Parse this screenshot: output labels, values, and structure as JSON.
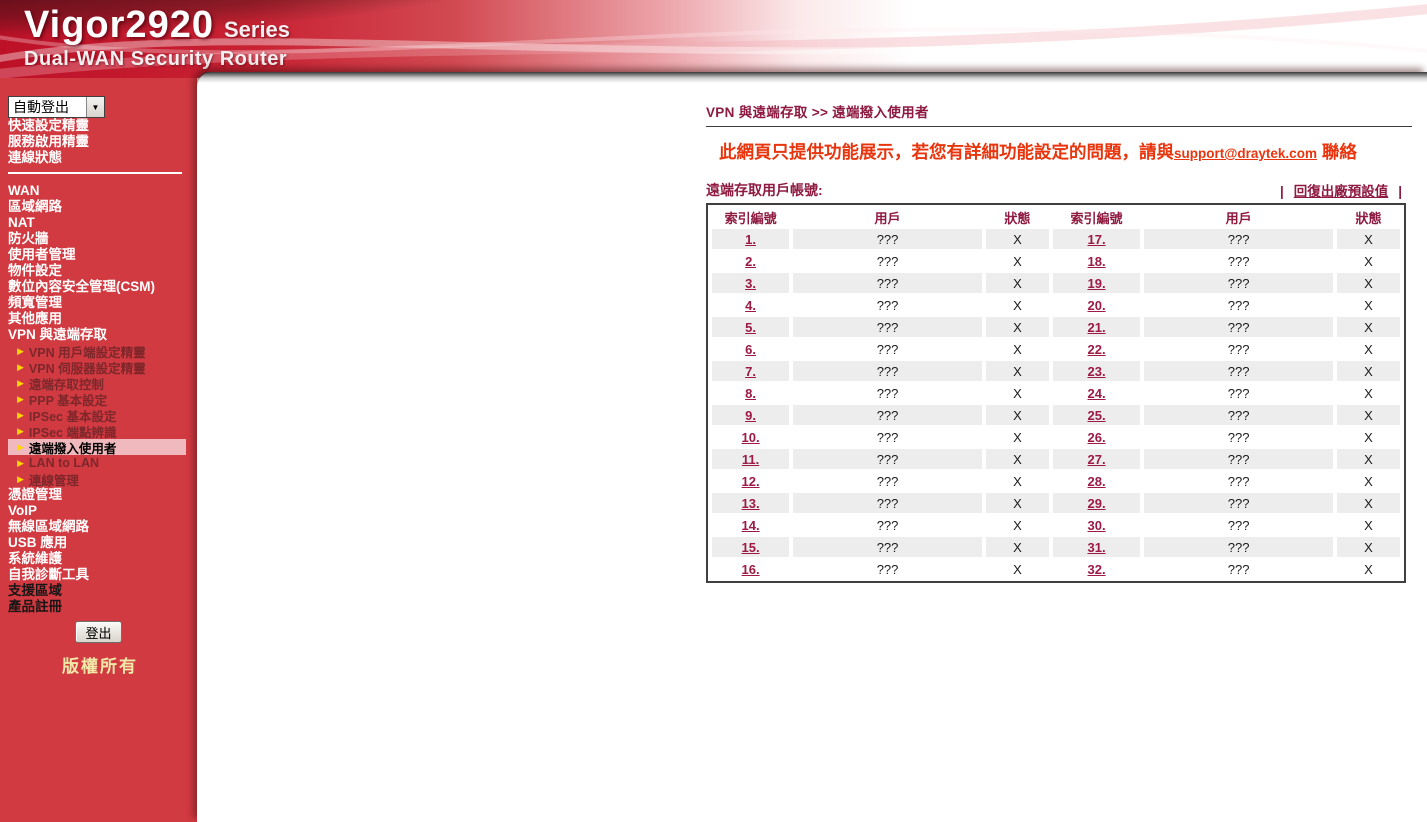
{
  "colors": {
    "sidebar_red": "#d23a41",
    "banner_red": "#c8152e",
    "accent_maroon": "#8e1a40",
    "notice_red": "#e8350e",
    "active_item_bg": "#f0b9bd",
    "active_item_text": "#000000",
    "submenu_text": "#7d272b",
    "triangle_yellow": "#ffd400",
    "copyright_yellow": "#f0e9a8",
    "row_alt_gray": "#ededed",
    "table_border": "#3f3f3f"
  },
  "banner": {
    "product": "Vigor2920",
    "series": "Series",
    "subtitle": "Dual-WAN Security Router"
  },
  "sidebar": {
    "logout_select_value": "自動登出",
    "select_arrow_icon": "▼",
    "top_items": [
      "快速設定精靈",
      "服務啟用精靈",
      "連線狀態"
    ],
    "menu": [
      {
        "label": "WAN"
      },
      {
        "label": "區域網路"
      },
      {
        "label": "NAT"
      },
      {
        "label": "防火牆"
      },
      {
        "label": "使用者管理"
      },
      {
        "label": "物件設定"
      },
      {
        "label": "數位內容安全管理(CSM)"
      },
      {
        "label": "頻寬管理"
      },
      {
        "label": "其他應用"
      },
      {
        "label": "VPN 與遠端存取",
        "children": [
          "VPN 用戶端設定精靈",
          "VPN 伺服器設定精靈",
          "遠端存取控制",
          "PPP 基本設定",
          "IPSec 基本設定",
          "IPSec 端點辨識",
          "遠端撥入使用者",
          "LAN to LAN",
          "連線管理"
        ],
        "active_child": "遠端撥入使用者"
      },
      {
        "label": "憑證管理"
      },
      {
        "label": "VoIP"
      },
      {
        "label": "無線區域網路"
      },
      {
        "label": "USB 應用"
      },
      {
        "label": "系統維護"
      },
      {
        "label": "自我診斷工具"
      }
    ],
    "bottom_items": [
      "支援區域",
      "產品註冊"
    ],
    "logout_button": "登出",
    "copyright": "版權所有",
    "triangle_icon": "▶"
  },
  "main": {
    "breadcrumb": "VPN 與遠端存取 >> 遠端撥入使用者",
    "notice_prefix": "此網頁只提供功能展示，若您有詳細功能設定的問題，請與",
    "notice_link": "support@draytek.com",
    "notice_suffix": " 聯絡",
    "caption": "遠端存取用戶帳號:",
    "pipe": "|",
    "restore_link": "回復出廠預設值",
    "table": {
      "headers": [
        "索引編號",
        "用戶",
        "狀態",
        "索引編號",
        "用戶",
        "狀態"
      ],
      "rows": [
        [
          "1.",
          "???",
          "X",
          "17.",
          "???",
          "X"
        ],
        [
          "2.",
          "???",
          "X",
          "18.",
          "???",
          "X"
        ],
        [
          "3.",
          "???",
          "X",
          "19.",
          "???",
          "X"
        ],
        [
          "4.",
          "???",
          "X",
          "20.",
          "???",
          "X"
        ],
        [
          "5.",
          "???",
          "X",
          "21.",
          "???",
          "X"
        ],
        [
          "6.",
          "???",
          "X",
          "22.",
          "???",
          "X"
        ],
        [
          "7.",
          "???",
          "X",
          "23.",
          "???",
          "X"
        ],
        [
          "8.",
          "???",
          "X",
          "24.",
          "???",
          "X"
        ],
        [
          "9.",
          "???",
          "X",
          "25.",
          "???",
          "X"
        ],
        [
          "10.",
          "???",
          "X",
          "26.",
          "???",
          "X"
        ],
        [
          "11.",
          "???",
          "X",
          "27.",
          "???",
          "X"
        ],
        [
          "12.",
          "???",
          "X",
          "28.",
          "???",
          "X"
        ],
        [
          "13.",
          "???",
          "X",
          "29.",
          "???",
          "X"
        ],
        [
          "14.",
          "???",
          "X",
          "30.",
          "???",
          "X"
        ],
        [
          "15.",
          "???",
          "X",
          "31.",
          "???",
          "X"
        ],
        [
          "16.",
          "???",
          "X",
          "32.",
          "???",
          "X"
        ]
      ]
    }
  }
}
